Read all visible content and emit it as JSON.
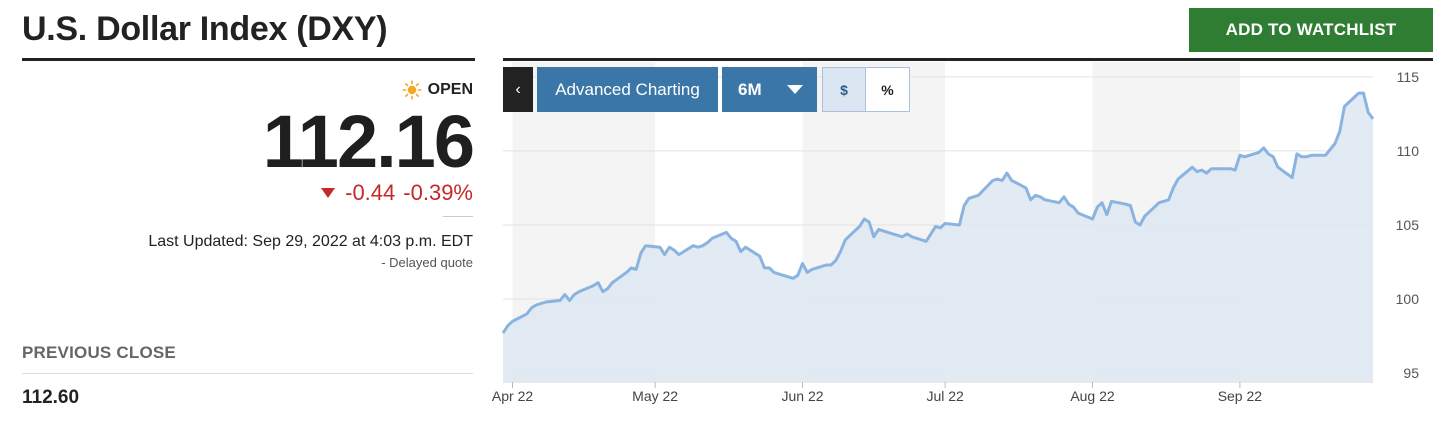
{
  "header": {
    "title": "U.S. Dollar Index (DXY)",
    "watchlist_label": "ADD TO WATCHLIST"
  },
  "quote": {
    "status": "OPEN",
    "price": "112.16",
    "change": "-0.44",
    "change_percent": "-0.39%",
    "last_updated": "Last Updated: Sep 29, 2022 at 4:03 p.m. EDT",
    "delayed_note": "-  Delayed quote",
    "previous_close_label": "PREVIOUS CLOSE",
    "previous_close_value": "112.60"
  },
  "chart_controls": {
    "back_label": "‹",
    "advanced_label": "Advanced Charting",
    "range_label": "6M",
    "dollar_label": "$",
    "percent_label": "%"
  },
  "colors": {
    "accent_green": "#2e7d32",
    "negative": "#c62828",
    "control_blue": "#3a76a8",
    "line": "#8ab4df",
    "fill": "#dde8f1"
  },
  "icons": {
    "status": "sun-icon",
    "change": "down-triangle-icon",
    "range": "chevron-down-icon"
  },
  "chart_data": {
    "type": "area",
    "series_name": "",
    "x_ticks": [
      "Apr 22",
      "May 22",
      "Jun 22",
      "Jul 22",
      "Aug 22",
      "Sep 22"
    ],
    "y_ticks": [
      95,
      100,
      105,
      110,
      115
    ],
    "ylim": [
      94.4,
      116
    ],
    "grid": true,
    "x_start": "2022-03-30",
    "x_end": "2022-09-29",
    "points": [
      [
        "2022-03-30",
        97.7
      ],
      [
        "2022-03-31",
        98.2
      ],
      [
        "2022-04-01",
        98.5
      ],
      [
        "2022-04-04",
        99.0
      ],
      [
        "2022-04-05",
        99.4
      ],
      [
        "2022-04-06",
        99.6
      ],
      [
        "2022-04-07",
        99.7
      ],
      [
        "2022-04-08",
        99.8
      ],
      [
        "2022-04-11",
        99.9
      ],
      [
        "2022-04-12",
        100.3
      ],
      [
        "2022-04-13",
        99.9
      ],
      [
        "2022-04-14",
        100.3
      ],
      [
        "2022-04-15",
        100.5
      ],
      [
        "2022-04-18",
        100.9
      ],
      [
        "2022-04-19",
        101.1
      ],
      [
        "2022-04-20",
        100.5
      ],
      [
        "2022-04-21",
        100.7
      ],
      [
        "2022-04-22",
        101.1
      ],
      [
        "2022-04-25",
        101.8
      ],
      [
        "2022-04-26",
        102.1
      ],
      [
        "2022-04-27",
        102.0
      ],
      [
        "2022-04-28",
        103.1
      ],
      [
        "2022-04-29",
        103.6
      ],
      [
        "2022-05-02",
        103.5
      ],
      [
        "2022-05-03",
        103.0
      ],
      [
        "2022-05-04",
        103.5
      ],
      [
        "2022-05-05",
        103.3
      ],
      [
        "2022-05-06",
        103.0
      ],
      [
        "2022-05-09",
        103.6
      ],
      [
        "2022-05-10",
        103.5
      ],
      [
        "2022-05-11",
        103.6
      ],
      [
        "2022-05-12",
        103.8
      ],
      [
        "2022-05-13",
        104.1
      ],
      [
        "2022-05-16",
        104.5
      ],
      [
        "2022-05-17",
        104.1
      ],
      [
        "2022-05-18",
        103.9
      ],
      [
        "2022-05-19",
        103.2
      ],
      [
        "2022-05-20",
        103.5
      ],
      [
        "2022-05-23",
        102.9
      ],
      [
        "2022-05-24",
        102.1
      ],
      [
        "2022-05-25",
        102.1
      ],
      [
        "2022-05-26",
        101.8
      ],
      [
        "2022-05-27",
        101.7
      ],
      [
        "2022-05-30",
        101.4
      ],
      [
        "2022-05-31",
        101.6
      ],
      [
        "2022-06-01",
        102.4
      ],
      [
        "2022-06-02",
        101.8
      ],
      [
        "2022-06-03",
        102.0
      ],
      [
        "2022-06-06",
        102.3
      ],
      [
        "2022-06-07",
        102.3
      ],
      [
        "2022-06-08",
        102.6
      ],
      [
        "2022-06-09",
        103.2
      ],
      [
        "2022-06-10",
        104.0
      ],
      [
        "2022-06-13",
        104.9
      ],
      [
        "2022-06-14",
        105.4
      ],
      [
        "2022-06-15",
        105.2
      ],
      [
        "2022-06-16",
        104.2
      ],
      [
        "2022-06-17",
        104.7
      ],
      [
        "2022-06-20",
        104.4
      ],
      [
        "2022-06-21",
        104.3
      ],
      [
        "2022-06-22",
        104.2
      ],
      [
        "2022-06-23",
        104.4
      ],
      [
        "2022-06-24",
        104.2
      ],
      [
        "2022-06-27",
        103.9
      ],
      [
        "2022-06-28",
        104.4
      ],
      [
        "2022-06-29",
        104.9
      ],
      [
        "2022-06-30",
        104.8
      ],
      [
        "2022-07-01",
        105.1
      ],
      [
        "2022-07-04",
        105.0
      ],
      [
        "2022-07-05",
        106.3
      ],
      [
        "2022-07-06",
        106.8
      ],
      [
        "2022-07-07",
        106.9
      ],
      [
        "2022-07-08",
        107.0
      ],
      [
        "2022-07-11",
        108.0
      ],
      [
        "2022-07-12",
        108.1
      ],
      [
        "2022-07-13",
        108.0
      ],
      [
        "2022-07-14",
        108.5
      ],
      [
        "2022-07-15",
        108.0
      ],
      [
        "2022-07-18",
        107.5
      ],
      [
        "2022-07-19",
        106.7
      ],
      [
        "2022-07-20",
        107.0
      ],
      [
        "2022-07-21",
        106.9
      ],
      [
        "2022-07-22",
        106.7
      ],
      [
        "2022-07-25",
        106.5
      ],
      [
        "2022-07-26",
        106.9
      ],
      [
        "2022-07-27",
        106.4
      ],
      [
        "2022-07-28",
        106.2
      ],
      [
        "2022-07-29",
        105.8
      ],
      [
        "2022-08-01",
        105.4
      ],
      [
        "2022-08-02",
        106.2
      ],
      [
        "2022-08-03",
        106.5
      ],
      [
        "2022-08-04",
        105.7
      ],
      [
        "2022-08-05",
        106.6
      ],
      [
        "2022-08-08",
        106.4
      ],
      [
        "2022-08-09",
        106.3
      ],
      [
        "2022-08-10",
        105.2
      ],
      [
        "2022-08-11",
        105.0
      ],
      [
        "2022-08-12",
        105.6
      ],
      [
        "2022-08-15",
        106.5
      ],
      [
        "2022-08-16",
        106.6
      ],
      [
        "2022-08-17",
        106.7
      ],
      [
        "2022-08-18",
        107.5
      ],
      [
        "2022-08-19",
        108.1
      ],
      [
        "2022-08-22",
        108.9
      ],
      [
        "2022-08-23",
        108.6
      ],
      [
        "2022-08-24",
        108.7
      ],
      [
        "2022-08-25",
        108.5
      ],
      [
        "2022-08-26",
        108.8
      ],
      [
        "2022-08-29",
        108.8
      ],
      [
        "2022-08-30",
        108.8
      ],
      [
        "2022-08-31",
        108.7
      ],
      [
        "2022-09-01",
        109.7
      ],
      [
        "2022-09-02",
        109.6
      ],
      [
        "2022-09-05",
        109.9
      ],
      [
        "2022-09-06",
        110.2
      ],
      [
        "2022-09-07",
        109.8
      ],
      [
        "2022-09-08",
        109.6
      ],
      [
        "2022-09-09",
        108.9
      ],
      [
        "2022-09-12",
        108.2
      ],
      [
        "2022-09-13",
        109.8
      ],
      [
        "2022-09-14",
        109.6
      ],
      [
        "2022-09-15",
        109.6
      ],
      [
        "2022-09-16",
        109.7
      ],
      [
        "2022-09-19",
        109.7
      ],
      [
        "2022-09-20",
        110.1
      ],
      [
        "2022-09-21",
        110.5
      ],
      [
        "2022-09-22",
        111.3
      ],
      [
        "2022-09-23",
        113.0
      ],
      [
        "2022-09-26",
        113.9
      ],
      [
        "2022-09-27",
        113.9
      ],
      [
        "2022-09-28",
        112.6
      ],
      [
        "2022-09-29",
        112.16
      ]
    ]
  }
}
